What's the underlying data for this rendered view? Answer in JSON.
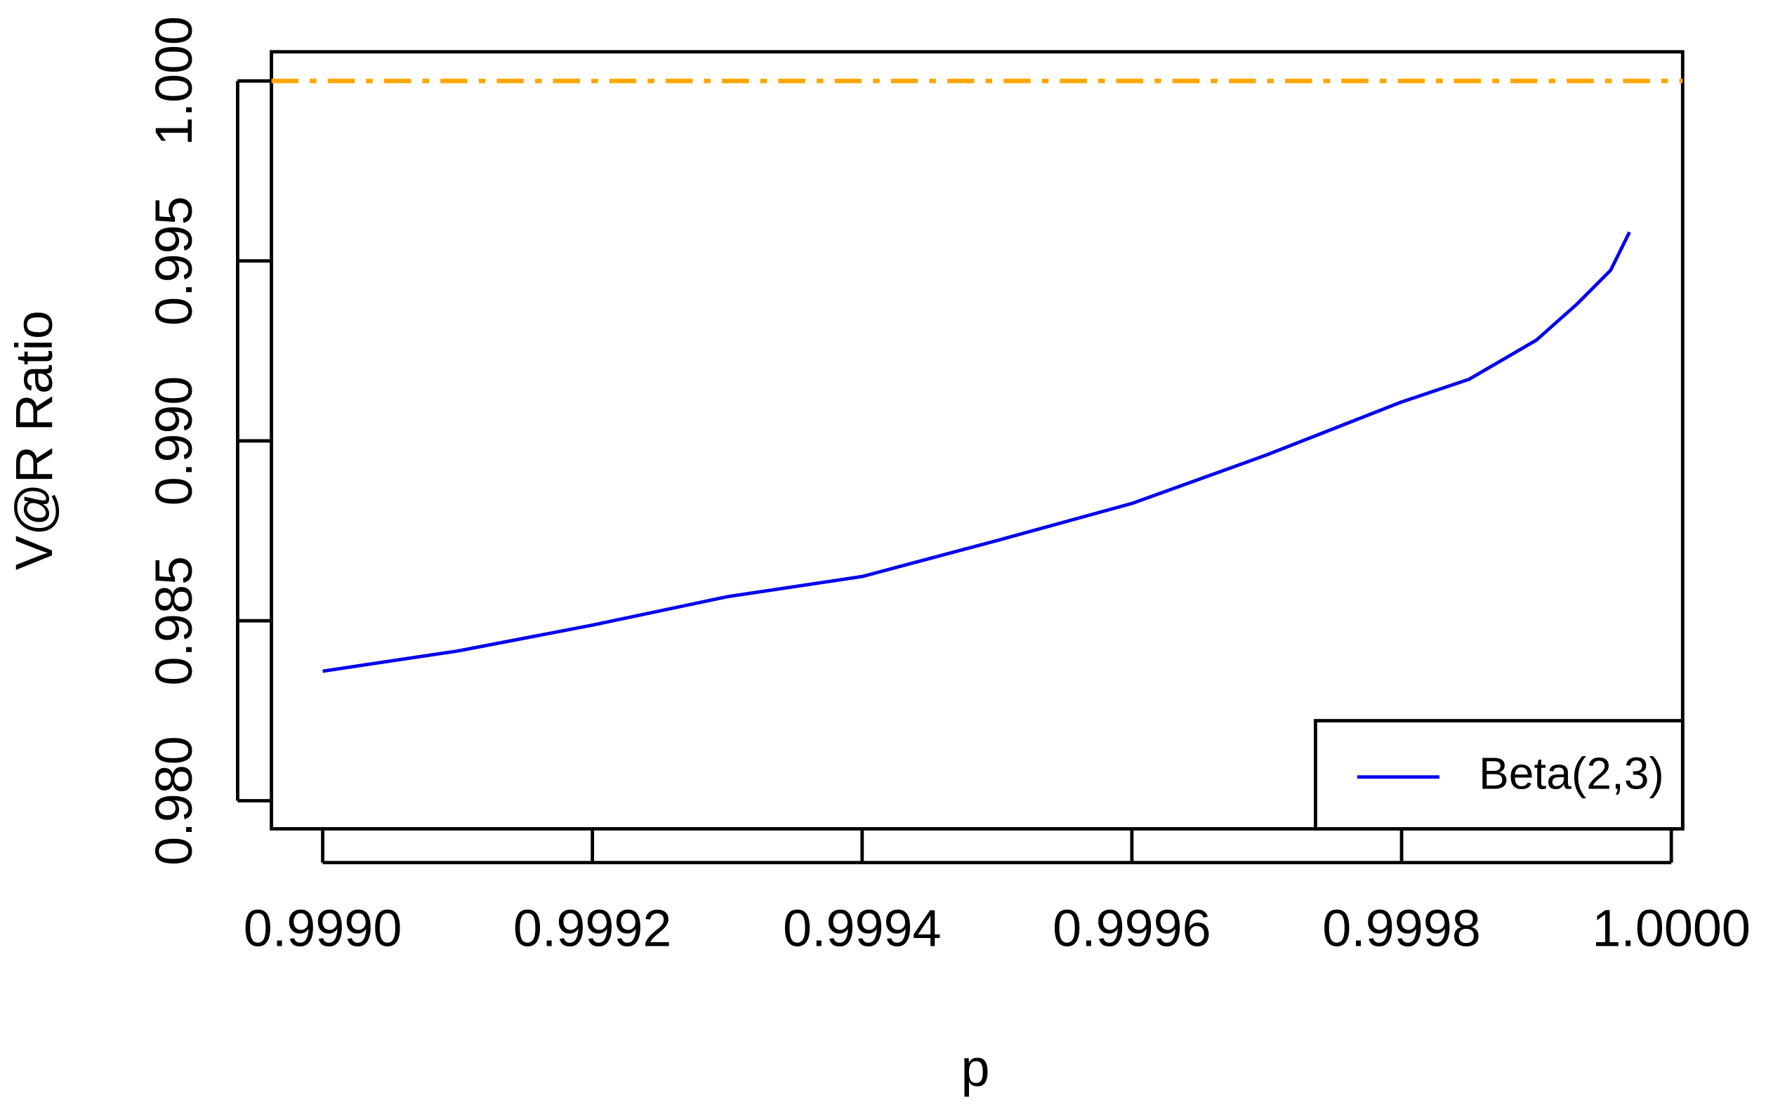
{
  "chart_data": {
    "type": "line",
    "x_label": "p",
    "y_label": "V@R Ratio",
    "x": [
      0.999,
      0.9991,
      0.9992,
      0.9993,
      0.9994,
      0.9995,
      0.9996,
      0.9997,
      0.9998,
      0.99985,
      0.9999,
      0.99993,
      0.999955,
      0.999969
    ],
    "series": [
      {
        "name": "Beta(2,3)",
        "color": "#0000ee",
        "values": [
          0.9836,
          0.98416,
          0.98488,
          0.98567,
          0.98623,
          0.98723,
          0.98826,
          0.98961,
          0.99108,
          0.99171,
          0.9928,
          0.9938,
          0.99474,
          0.9958
        ]
      }
    ],
    "reference_line": {
      "value": 1.0,
      "color": "#ffa500"
    },
    "xlim": [
      0.998962,
      1.0000084
    ],
    "ylim": [
      0.97922,
      1.00081
    ],
    "xticks": [
      {
        "value": 0.999,
        "label": "0.9990"
      },
      {
        "value": 0.9992,
        "label": "0.9992"
      },
      {
        "value": 0.9994,
        "label": "0.9994"
      },
      {
        "value": 0.9996,
        "label": "0.9996"
      },
      {
        "value": 0.9998,
        "label": "0.9998"
      },
      {
        "value": 1.0,
        "label": "1.0000"
      }
    ],
    "yticks": [
      {
        "value": 0.98,
        "label": "0.980"
      },
      {
        "value": 0.985,
        "label": "0.985"
      },
      {
        "value": 0.99,
        "label": "0.990"
      },
      {
        "value": 0.995,
        "label": "0.995"
      },
      {
        "value": 1.0,
        "label": "1.000"
      }
    ],
    "legend": "bottom-right"
  }
}
